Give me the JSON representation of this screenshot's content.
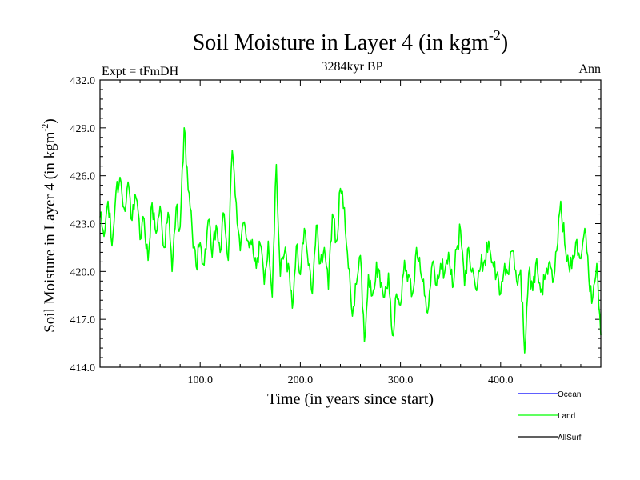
{
  "chart_data": {
    "type": "line",
    "title": "Soil Moisture in Layer 4 (in kgm",
    "title_sup": "-2",
    "title_close": ")",
    "subtitle": "3284kyr BP",
    "top_left": "Expt = tFmDH",
    "top_right": "Ann",
    "xlabel": "Time (in years since start)",
    "ylabel": "Soil Moisture in Layer 4 (in kgm",
    "ylabel_sup": "-2",
    "ylabel_close": ")",
    "xlim": [
      0,
      500
    ],
    "ylim": [
      414,
      432
    ],
    "x_ticks": [
      100,
      200,
      300,
      400
    ],
    "x_tick_labels": [
      "100.0",
      "200.0",
      "300.0",
      "400.0"
    ],
    "y_ticks": [
      414,
      417,
      420,
      423,
      426,
      429,
      432
    ],
    "y_tick_labels": [
      "414.0",
      "417.0",
      "420.0",
      "423.0",
      "426.0",
      "429.0",
      "432.0"
    ],
    "legend": [
      {
        "label": "Ocean",
        "color": "#0000ff"
      },
      {
        "label": "Land",
        "color": "#00ff00"
      },
      {
        "label": "AllSurf",
        "color": "#000000"
      }
    ],
    "series": [
      {
        "name": "Land",
        "color": "#00ff00",
        "anchors": [
          [
            0,
            423.4
          ],
          [
            4,
            422.2
          ],
          [
            8,
            424.4
          ],
          [
            12,
            421.6
          ],
          [
            16,
            425.0
          ],
          [
            20,
            425.9
          ],
          [
            24,
            424.0
          ],
          [
            28,
            425.6
          ],
          [
            32,
            423.2
          ],
          [
            36,
            424.6
          ],
          [
            40,
            422.0
          ],
          [
            44,
            423.3
          ],
          [
            48,
            420.7
          ],
          [
            52,
            424.3
          ],
          [
            56,
            422.4
          ],
          [
            60,
            424.1
          ],
          [
            64,
            421.5
          ],
          [
            68,
            423.7
          ],
          [
            72,
            420.0
          ],
          [
            76,
            424.0
          ],
          [
            80,
            422.8
          ],
          [
            84,
            429.0
          ],
          [
            88,
            425.1
          ],
          [
            92,
            422.6
          ],
          [
            96,
            420.3
          ],
          [
            100,
            421.8
          ],
          [
            104,
            420.4
          ],
          [
            108,
            423.2
          ],
          [
            112,
            420.9
          ],
          [
            116,
            422.9
          ],
          [
            120,
            421.2
          ],
          [
            124,
            423.6
          ],
          [
            128,
            420.7
          ],
          [
            132,
            427.6
          ],
          [
            136,
            424.3
          ],
          [
            140,
            421.3
          ],
          [
            144,
            423.1
          ],
          [
            148,
            421.9
          ],
          [
            152,
            422.0
          ],
          [
            156,
            420.2
          ],
          [
            160,
            421.7
          ],
          [
            164,
            419.2
          ],
          [
            168,
            421.9
          ],
          [
            172,
            418.4
          ],
          [
            176,
            426.7
          ],
          [
            180,
            419.7
          ],
          [
            184,
            421.1
          ],
          [
            188,
            420.5
          ],
          [
            192,
            417.7
          ],
          [
            196,
            421.6
          ],
          [
            200,
            419.8
          ],
          [
            204,
            422.7
          ],
          [
            208,
            420.4
          ],
          [
            212,
            418.6
          ],
          [
            216,
            422.9
          ],
          [
            220,
            420.5
          ],
          [
            224,
            421.5
          ],
          [
            228,
            418.9
          ],
          [
            232,
            423.6
          ],
          [
            236,
            421.9
          ],
          [
            240,
            425.2
          ],
          [
            244,
            424.0
          ],
          [
            248,
            420.2
          ],
          [
            252,
            417.2
          ],
          [
            256,
            419.2
          ],
          [
            260,
            421.0
          ],
          [
            264,
            415.6
          ],
          [
            268,
            419.8
          ],
          [
            272,
            418.5
          ],
          [
            276,
            420.6
          ],
          [
            280,
            419.0
          ],
          [
            284,
            418.4
          ],
          [
            288,
            419.9
          ],
          [
            292,
            416.0
          ],
          [
            296,
            418.6
          ],
          [
            300,
            417.9
          ],
          [
            304,
            420.7
          ],
          [
            308,
            419.8
          ],
          [
            312,
            418.6
          ],
          [
            316,
            421.5
          ],
          [
            320,
            420.0
          ],
          [
            324,
            418.5
          ],
          [
            328,
            417.8
          ],
          [
            332,
            420.6
          ],
          [
            336,
            419.1
          ],
          [
            340,
            420.5
          ],
          [
            344,
            419.9
          ],
          [
            348,
            421.2
          ],
          [
            352,
            419.0
          ],
          [
            356,
            421.4
          ],
          [
            360,
            422.6
          ],
          [
            364,
            419.1
          ],
          [
            368,
            421.5
          ],
          [
            372,
            420.2
          ],
          [
            376,
            418.8
          ],
          [
            380,
            420.3
          ],
          [
            384,
            420.7
          ],
          [
            388,
            421.9
          ],
          [
            392,
            420.6
          ],
          [
            396,
            419.8
          ],
          [
            400,
            418.6
          ],
          [
            404,
            420.5
          ],
          [
            408,
            419.8
          ],
          [
            412,
            421.3
          ],
          [
            416,
            419.4
          ],
          [
            420,
            420.1
          ],
          [
            424,
            414.9
          ],
          [
            428,
            419.9
          ],
          [
            432,
            418.8
          ],
          [
            436,
            420.8
          ],
          [
            440,
            418.7
          ],
          [
            444,
            419.5
          ],
          [
            448,
            420.5
          ],
          [
            452,
            419.3
          ],
          [
            456,
            421.3
          ],
          [
            460,
            424.4
          ],
          [
            464,
            421.7
          ],
          [
            468,
            420.4
          ],
          [
            472,
            421.0
          ],
          [
            476,
            422.0
          ],
          [
            480,
            420.8
          ],
          [
            484,
            422.7
          ],
          [
            488,
            419.6
          ],
          [
            492,
            418.4
          ],
          [
            496,
            420.5
          ],
          [
            500,
            416.0
          ]
        ]
      }
    ]
  }
}
